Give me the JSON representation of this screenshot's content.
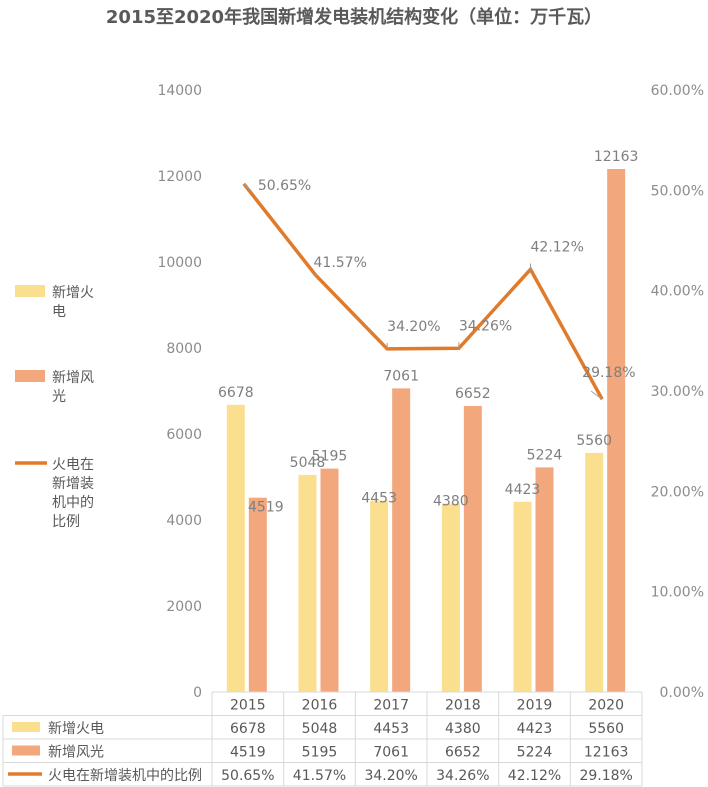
{
  "chart_data": {
    "type": "bar",
    "title": "2015至2020年我国新增发电装机结构变化（单位：万千瓦）",
    "categories": [
      "2015",
      "2016",
      "2017",
      "2018",
      "2019",
      "2020"
    ],
    "series": [
      {
        "name": "新增火电",
        "kind": "bar",
        "color": "#fadf8f",
        "values": [
          6678,
          5048,
          4453,
          4380,
          4423,
          5560
        ]
      },
      {
        "name": "新增风光",
        "kind": "bar",
        "color": "#f2a77c",
        "values": [
          4519,
          5195,
          7061,
          6652,
          5224,
          12163
        ]
      },
      {
        "name": "火电在新增装机中的比例",
        "kind": "line",
        "axis": "right",
        "color": "#e07b2c",
        "values": [
          50.65,
          41.57,
          34.2,
          34.26,
          42.12,
          29.18
        ],
        "labels": [
          "50.65%",
          "41.57%",
          "34.20%",
          "34.26%",
          "42.12%",
          "29.18%"
        ]
      }
    ],
    "left_axis": {
      "range": [
        0,
        14000
      ],
      "ticks": [
        "0",
        "2000",
        "4000",
        "6000",
        "8000",
        "10000",
        "12000",
        "14000"
      ]
    },
    "right_axis": {
      "range": [
        0,
        60
      ],
      "ticks": [
        "0.00%",
        "10.00%",
        "20.00%",
        "30.00%",
        "40.00%",
        "50.00%",
        "60.00%"
      ]
    },
    "legend": {
      "position": "left",
      "entries": [
        {
          "lines": [
            "新增火",
            "电"
          ]
        },
        {
          "lines": [
            "新增风",
            "光"
          ]
        },
        {
          "lines": [
            "火电在",
            "新增装",
            "机中的",
            "比例"
          ]
        }
      ]
    },
    "data_table": {
      "rows": [
        {
          "label": "新增火电",
          "cells": [
            "6678",
            "5048",
            "4453",
            "4380",
            "4423",
            "5560"
          ]
        },
        {
          "label": "新增风光",
          "cells": [
            "4519",
            "5195",
            "7061",
            "6652",
            "5224",
            "12163"
          ]
        },
        {
          "label": "火电在新增装机中的比例",
          "cells": [
            "50.65%",
            "41.57%",
            "34.20%",
            "34.26%",
            "42.12%",
            "29.18%"
          ]
        }
      ]
    },
    "grid": false
  }
}
